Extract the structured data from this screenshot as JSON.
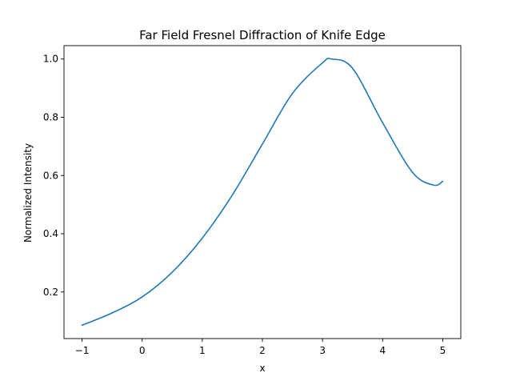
{
  "chart_data": {
    "type": "line",
    "title": "Far Field Fresnel Diffraction of Knife Edge",
    "xlabel": "x",
    "ylabel": "Normalized Intensity",
    "xlim": [
      -1.3,
      5.3
    ],
    "ylim": [
      0.04,
      1.046
    ],
    "grid": false,
    "xticks": [
      -1,
      0,
      1,
      2,
      3,
      4,
      5
    ],
    "xtick_labels": [
      "−1",
      "0",
      "1",
      "2",
      "3",
      "4",
      "5"
    ],
    "yticks": [
      0.2,
      0.4,
      0.6,
      0.8,
      1.0
    ],
    "ytick_labels": [
      "0.2",
      "0.4",
      "0.6",
      "0.8",
      "1.0"
    ],
    "series": [
      {
        "color": "#1f77b4",
        "x": [
          -1.0,
          -0.5,
          0.0,
          0.5,
          1.0,
          1.5,
          2.0,
          2.5,
          3.0,
          3.15,
          3.5,
          4.0,
          4.5,
          4.85,
          5.0
        ],
        "y": [
          0.086,
          0.128,
          0.183,
          0.268,
          0.385,
          0.533,
          0.708,
          0.882,
          0.987,
          1.0,
          0.968,
          0.781,
          0.61,
          0.567,
          0.58
        ]
      }
    ]
  }
}
